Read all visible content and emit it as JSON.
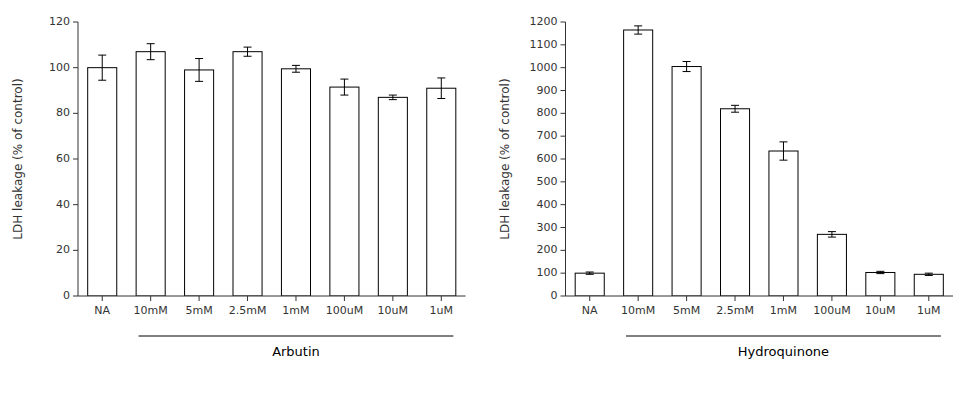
{
  "chart_data": [
    {
      "type": "bar",
      "categories": [
        "NA",
        "10mM",
        "5mM",
        "2.5mM",
        "1mM",
        "100uM",
        "10uM",
        "1uM"
      ],
      "values": [
        100,
        107,
        99,
        107,
        99.5,
        91.5,
        87,
        91
      ],
      "errors": [
        5.5,
        3.5,
        5,
        2,
        1.5,
        3.5,
        1,
        4.5
      ],
      "ylabel": "LDH leakage (% of control)",
      "xlabel": "Arbutin",
      "ylim": [
        0,
        120
      ],
      "yticks": [
        0,
        20,
        40,
        60,
        80,
        100,
        120
      ],
      "color": "#ffffff"
    },
    {
      "type": "bar",
      "categories": [
        "NA",
        "10mM",
        "5mM",
        "2.5mM",
        "1mM",
        "100uM",
        "10uM",
        "1uM"
      ],
      "values": [
        100,
        1165,
        1005,
        820,
        635,
        270,
        103,
        95
      ],
      "errors": [
        5,
        18,
        22,
        15,
        40,
        12,
        5,
        5
      ],
      "ylabel": "LDH leakage (% of control)",
      "xlabel": "Hydroquinone",
      "ylim": [
        0,
        1200
      ],
      "yticks": [
        0,
        100,
        200,
        300,
        400,
        500,
        600,
        700,
        800,
        900,
        1000,
        1100,
        1200
      ],
      "color": "#ffffff"
    }
  ]
}
